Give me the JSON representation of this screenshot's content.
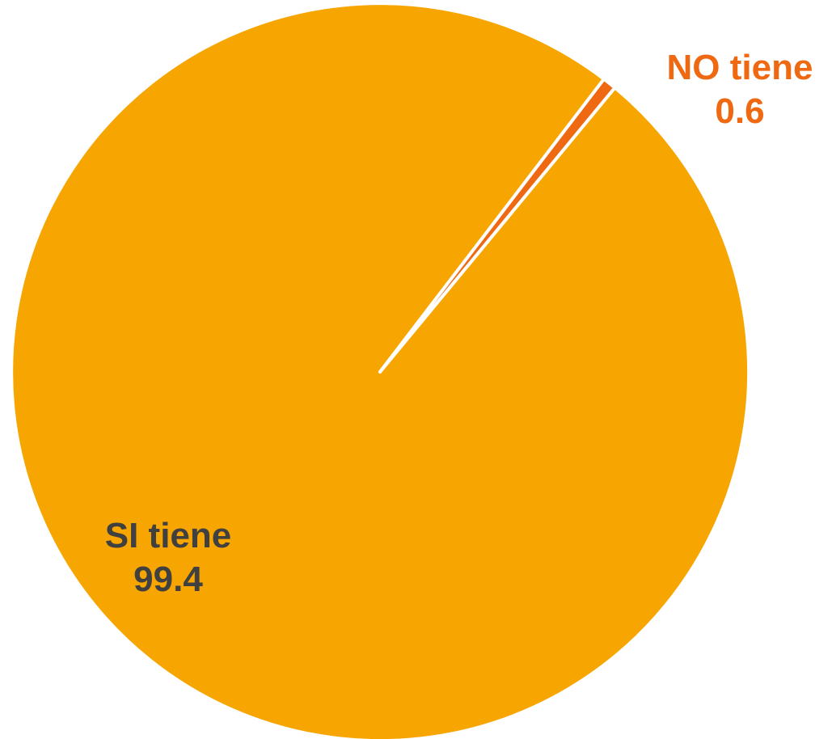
{
  "chart_data": {
    "type": "pie",
    "slices": [
      {
        "label": "SI tiene",
        "value": 99.4,
        "display_value": "99.4",
        "color": "#F7A500",
        "label_color": "#404040"
      },
      {
        "label": "NO tiene",
        "value": 0.6,
        "display_value": "0.6",
        "color": "#EE6911",
        "label_color": "#EE6911"
      }
    ],
    "separator_color": "#ffffff"
  }
}
